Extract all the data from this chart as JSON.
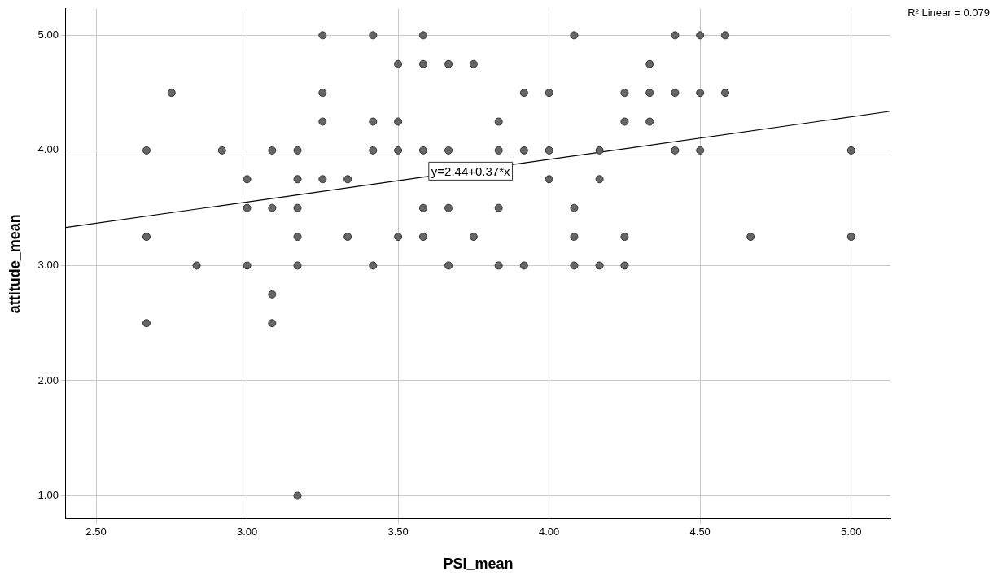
{
  "chart_data": {
    "type": "scatter",
    "xlabel": "PSI_mean",
    "ylabel": "attitude_mean",
    "xlim": [
      2.4,
      5.13
    ],
    "ylim": [
      0.8,
      5.23
    ],
    "xticks": [
      {
        "value": 2.5,
        "label": "2.50"
      },
      {
        "value": 3,
        "label": "3.00"
      },
      {
        "value": 3.5,
        "label": "3.50"
      },
      {
        "value": 4,
        "label": "4.00"
      },
      {
        "value": 4.5,
        "label": "4.50"
      },
      {
        "value": 5,
        "label": "5.00"
      }
    ],
    "yticks": [
      {
        "value": 1,
        "label": "1.00"
      },
      {
        "value": 2,
        "label": "2.00"
      },
      {
        "value": 3,
        "label": "3.00"
      },
      {
        "value": 4,
        "label": "4.00"
      },
      {
        "value": 5,
        "label": "5.00"
      }
    ],
    "grid": true,
    "legend": false,
    "marker": "circle",
    "series": [
      {
        "type": "scatter",
        "color": "#666666",
        "x": [
          2.667,
          2.667,
          2.667,
          2.75,
          2.833,
          2.917,
          3.0,
          3.0,
          3.0,
          3.083,
          3.083,
          3.083,
          3.083,
          3.167,
          3.167,
          3.167,
          3.167,
          3.167,
          3.167,
          3.25,
          3.25,
          3.25,
          3.25,
          3.333,
          3.333,
          3.417,
          3.417,
          3.417,
          3.417,
          3.5,
          3.5,
          3.5,
          3.5,
          3.583,
          3.583,
          3.583,
          3.583,
          3.583,
          3.667,
          3.667,
          3.667,
          3.667,
          3.75,
          3.75,
          3.833,
          3.833,
          3.833,
          3.833,
          3.917,
          3.917,
          3.917,
          4.0,
          4.0,
          4.0,
          4.083,
          4.083,
          4.083,
          4.083,
          4.167,
          4.167,
          4.167,
          4.25,
          4.25,
          4.25,
          4.25,
          4.333,
          4.333,
          4.333,
          4.417,
          4.417,
          4.417,
          4.5,
          4.5,
          4.5,
          4.583,
          4.583,
          4.667,
          5.0,
          5.0
        ],
        "values": [
          4.0,
          3.25,
          2.5,
          4.5,
          3.0,
          4.0,
          3.75,
          3.5,
          3.0,
          4.0,
          3.5,
          2.75,
          2.5,
          4.0,
          3.75,
          3.5,
          3.25,
          3.0,
          1.0,
          5.0,
          4.5,
          4.25,
          3.75,
          3.75,
          3.25,
          5.0,
          4.25,
          4.0,
          3.0,
          4.75,
          4.25,
          4.0,
          3.25,
          5.0,
          4.75,
          4.0,
          3.5,
          3.25,
          4.75,
          4.0,
          3.5,
          3.0,
          4.75,
          3.25,
          4.25,
          4.0,
          3.5,
          3.0,
          4.5,
          4.0,
          3.0,
          4.5,
          4.0,
          3.75,
          5.0,
          3.5,
          3.25,
          3.0,
          4.0,
          3.75,
          3.0,
          4.5,
          4.25,
          3.25,
          3.0,
          4.75,
          4.5,
          4.25,
          5.0,
          4.5,
          4.0,
          5.0,
          4.5,
          4.0,
          5.0,
          4.5,
          3.25,
          4.0,
          3.25
        ]
      },
      {
        "type": "line",
        "color": "#000000",
        "marker": "none",
        "x": [
          2.4,
          5.13
        ],
        "values": [
          3.33,
          4.34
        ]
      }
    ],
    "annotations": [
      {
        "text": "y=2.44+0.37*x",
        "x": 3.74,
        "y": 3.82
      },
      "R² Linear = 0.079"
    ]
  }
}
